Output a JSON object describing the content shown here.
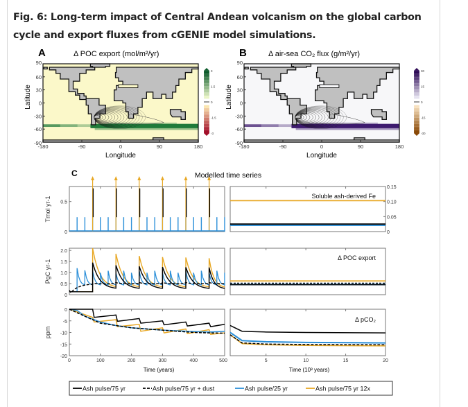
{
  "figure": {
    "title": "Fig. 6: Long-term impact of Central Andean volcanism on the global carbon cycle and export fluxes from cGENIE model simulations."
  },
  "panel_a": {
    "letter": "A",
    "title": "Δ POC export (mol/m²/yr)",
    "ylabel": "Latitude",
    "xlabel": "Longitude",
    "yticks": [
      "90",
      "60",
      "30",
      "0",
      "-30",
      "-60",
      "-90"
    ],
    "xticks": [
      "-180",
      "-90",
      "0",
      "90",
      "180"
    ],
    "colorbar_ticks": [
      "3",
      "1.5",
      "0",
      "-1.5",
      "-3"
    ],
    "colors": {
      "ocean": "#fbf8c9",
      "land": "#c0c0c0",
      "anomaly": "#1f7a3a",
      "cbar_top": "#0b5a2a",
      "cbar_bottom": "#a3102a"
    }
  },
  "panel_b": {
    "letter": "B",
    "title": "Δ air-sea CO₂ flux (g/m²/yr)",
    "ylabel": "Latitude",
    "xlabel": "Longitude",
    "yticks": [
      "90",
      "60",
      "30",
      "0",
      "-30",
      "-60",
      "-90"
    ],
    "xticks": [
      "-180",
      "-90",
      "0",
      "90",
      "180"
    ],
    "colorbar_ticks": [
      "30",
      "15",
      "0",
      "-15",
      "-30"
    ],
    "colors": {
      "ocean": "#f7f7f9",
      "land": "#c0c0c0",
      "anomaly": "#3d1a6e",
      "cbar_top": "#2d0a55",
      "cbar_bottom": "#8a4a08"
    }
  },
  "panel_c": {
    "letter": "C",
    "title": "Modelled time series",
    "left_xlabel": "Time (years)",
    "right_xlabel": "Time (10³ years)",
    "left_xticks": [
      "0",
      "100",
      "200",
      "300",
      "400",
      "500"
    ],
    "right_xticks": [
      "5",
      "10",
      "15",
      "20"
    ]
  },
  "legend": [
    {
      "label": "Ash pulse/75 yr",
      "color": "#000000",
      "style": "solid"
    },
    {
      "label": "Ash pulse/75 yr + dust",
      "color": "#000000",
      "style": "dashed"
    },
    {
      "label": "Ash pulse/25 yr",
      "color": "#2b8fd8",
      "style": "solid"
    },
    {
      "label": "Ash pulse/75 yr 12x",
      "color": "#e8a825",
      "style": "solid"
    }
  ],
  "chart_data": [
    {
      "type": "line",
      "title": "Soluble ash-derived Fe",
      "ylabel": "Tmol yr-1",
      "left": {
        "xlim": [
          0,
          500
        ],
        "ylim": [
          0,
          0.75
        ],
        "yticks": [
          "0",
          "0.5"
        ],
        "pulses": [
          {
            "name": "Ash pulse/75 yr",
            "times": [
              75,
              150,
              225,
              300,
              375,
              450
            ],
            "peak": 0.72
          },
          {
            "name": "Ash pulse/75 yr 12x",
            "times": [
              75,
              150,
              225,
              300,
              375,
              450
            ],
            "peak": "off-scale (arrow)"
          },
          {
            "name": "Ash pulse/25 yr",
            "times": [
              25,
              50,
              75,
              100,
              125,
              150,
              175,
              200,
              225,
              250,
              275,
              300,
              325,
              350,
              375,
              400,
              425,
              450,
              475,
              500
            ],
            "peak": 0.24
          }
        ]
      },
      "right": {
        "xlim": [
          0.5,
          20
        ],
        "ylim": [
          0,
          0.15
        ],
        "yticks_right": [
          "0",
          "0.05",
          "0.10",
          "0.15"
        ],
        "series": [
          {
            "name": "Ash pulse/75 yr 12x",
            "value": 0.103
          },
          {
            "name": "Ash pulse/75 yr",
            "value": 0.025
          },
          {
            "name": "Ash pulse/25 yr",
            "value": 0.024
          }
        ]
      }
    },
    {
      "type": "line",
      "title": "Δ POC export",
      "ylabel": "PgC yr-1",
      "left": {
        "xlim": [
          0,
          500
        ],
        "ylim": [
          0,
          2.1
        ],
        "yticks": [
          "0",
          "0.5",
          "1.0",
          "1.5",
          "2.0"
        ],
        "series": [
          {
            "name": "Ash pulse/75 yr",
            "pulse_peaks": [
              1.45,
              1.33,
              1.28,
              1.25,
              1.24,
              1.23
            ],
            "baseline": 0.13,
            "trough": 0.25
          },
          {
            "name": "Ash pulse/75 yr + dust",
            "plateau": 0.5
          },
          {
            "name": "Ash pulse/25 yr",
            "pulse_peaks": [
              1.2,
              1.1,
              1.05,
              1.0
            ],
            "trough": 0.4
          },
          {
            "name": "Ash pulse/75 yr 12x",
            "pulse_peaks": [
              2.1,
              1.85,
              1.75,
              1.7,
              1.68,
              1.65
            ],
            "trough": 0.3
          }
        ]
      },
      "right": {
        "xlim": [
          0.5,
          20
        ],
        "series": [
          {
            "name": "Ash pulse/75 yr 12x",
            "value": 0.62
          },
          {
            "name": "Ash pulse/75 yr + dust",
            "value": 0.52
          },
          {
            "name": "Ash pulse/75 yr",
            "value": 0.45
          },
          {
            "name": "Ash pulse/25 yr",
            "value": 0.46
          }
        ]
      }
    },
    {
      "type": "line",
      "title": "Δ pCO₂",
      "ylabel": "ppm",
      "left": {
        "xlim": [
          0,
          500
        ],
        "ylim": [
          -20,
          0
        ],
        "yticks": [
          "0",
          "-5",
          "-10",
          "-15",
          "-20"
        ],
        "series": [
          {
            "name": "Ash pulse/75 yr",
            "x": [
              0,
              75,
              80,
              150,
              155,
              225,
              230,
              300,
              305,
              375,
              380,
              450,
              455,
              500
            ],
            "y": [
              0,
              0,
              -3.5,
              -2.5,
              -5.2,
              -4.0,
              -6.0,
              -5.0,
              -6.7,
              -5.5,
              -7.2,
              -6.0,
              -7.5,
              -6.5
            ]
          },
          {
            "name": "Ash pulse/75 yr + dust",
            "x": [
              0,
              50,
              100,
              150,
              200,
              250,
              300,
              350,
              400,
              450,
              500
            ],
            "y": [
              0,
              -3,
              -6,
              -7,
              -8,
              -8.5,
              -9,
              -9.5,
              -10,
              -10.2,
              -10.3
            ]
          },
          {
            "name": "Ash pulse/25 yr",
            "x": [
              0,
              25,
              50,
              100,
              150,
              200,
              250,
              300,
              350,
              400,
              450,
              500
            ],
            "y": [
              0,
              -0.5,
              -3,
              -5.5,
              -7,
              -8,
              -8.5,
              -9,
              -9.3,
              -9.6,
              -9.8,
              -9.5
            ]
          },
          {
            "name": "Ash pulse/75 yr 12x",
            "x": [
              0,
              75,
              80,
              150,
              155,
              225,
              230,
              300,
              305,
              375,
              380,
              450,
              455,
              500
            ],
            "y": [
              0,
              -3.5,
              -5.5,
              -4.5,
              -7.5,
              -6.5,
              -9.5,
              -8.0,
              -10.2,
              -8.5,
              -10.5,
              -8.8,
              -10.8,
              -10.2
            ]
          }
        ]
      },
      "right": {
        "xlim": [
          0.5,
          20
        ],
        "series": [
          {
            "name": "Ash pulse/75 yr",
            "x": [
              0.5,
              2,
              5,
              10,
              20
            ],
            "y": [
              -7,
              -9.5,
              -9.8,
              -10,
              -10.2
            ]
          },
          {
            "name": "Ash pulse/25 yr",
            "x": [
              0.5,
              2,
              5,
              10,
              20
            ],
            "y": [
              -10,
              -13.5,
              -14,
              -14.3,
              -14.5
            ]
          },
          {
            "name": "Ash pulse/75 yr + dust",
            "x": [
              0.5,
              2,
              5,
              10,
              20
            ],
            "y": [
              -11,
              -14.5,
              -15,
              -15.2,
              -15.3
            ]
          },
          {
            "name": "Ash pulse/75 yr 12x",
            "x": [
              0.5,
              2,
              5,
              10,
              20
            ],
            "y": [
              -11,
              -14.8,
              -15.3,
              -15.6,
              -15.8
            ]
          }
        ]
      }
    }
  ]
}
